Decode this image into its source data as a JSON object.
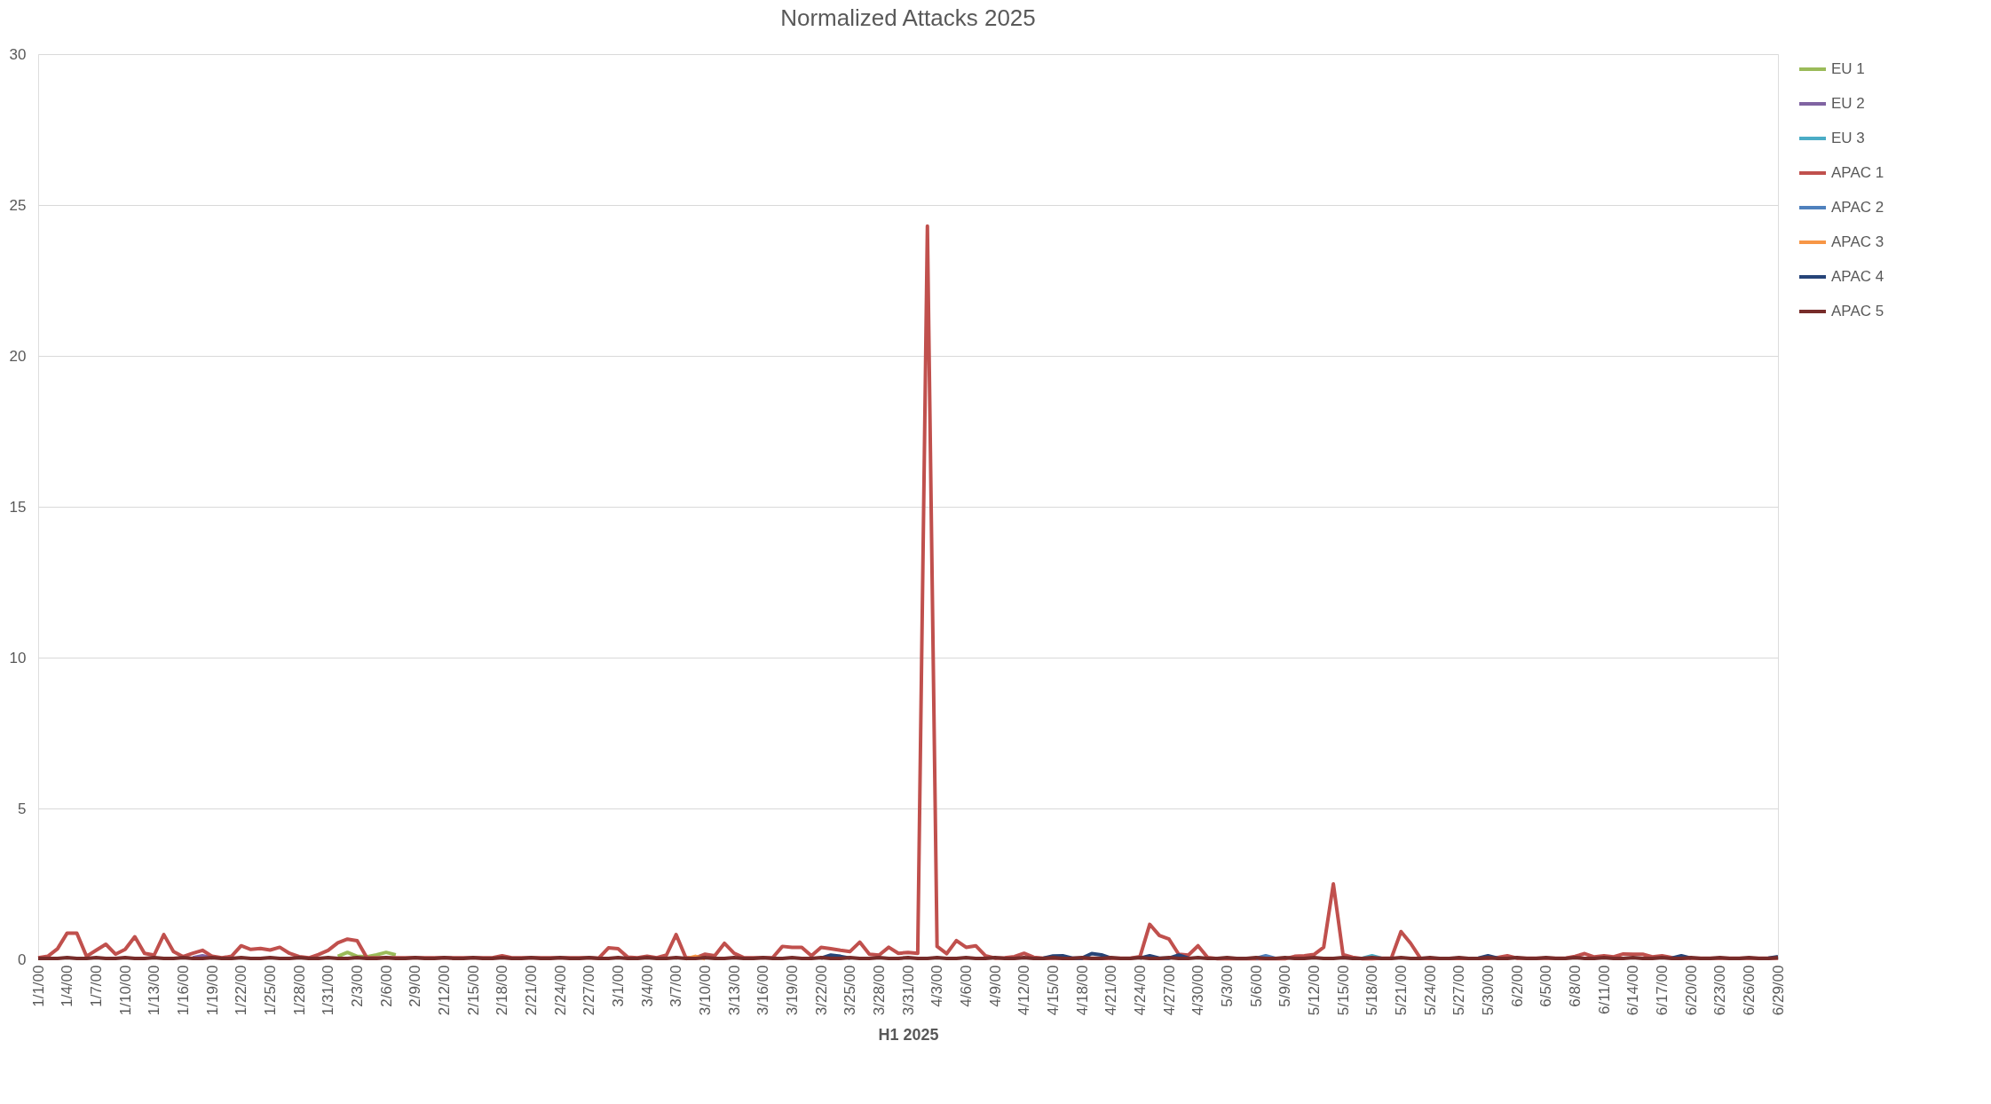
{
  "chart_data": {
    "type": "line",
    "title": "Normalized Attacks 2025",
    "xlabel": "H1 2025",
    "categories": [
      "1/1/00",
      null,
      null,
      "1/4/00",
      null,
      null,
      "1/7/00",
      null,
      null,
      "1/10/00",
      null,
      null,
      "1/13/00",
      null,
      null,
      "1/16/00",
      null,
      null,
      "1/19/00",
      null,
      null,
      "1/22/00",
      null,
      null,
      "1/25/00",
      null,
      null,
      "1/28/00",
      null,
      null,
      "1/31/00",
      null,
      null,
      "2/3/00",
      null,
      null,
      "2/6/00",
      null,
      null,
      "2/9/00",
      null,
      null,
      "2/12/00",
      null,
      null,
      "2/15/00",
      null,
      null,
      "2/18/00",
      null,
      null,
      "2/21/00",
      null,
      null,
      "2/24/00",
      null,
      null,
      "2/27/00",
      null,
      null,
      "3/1/00",
      null,
      null,
      "3/4/00",
      null,
      null,
      "3/7/00",
      null,
      null,
      "3/10/00",
      null,
      null,
      "3/13/00",
      null,
      null,
      "3/16/00",
      null,
      null,
      "3/19/00",
      null,
      null,
      "3/22/00",
      null,
      null,
      "3/25/00",
      null,
      null,
      "3/28/00",
      null,
      null,
      "3/31/00",
      null,
      null,
      "4/3/00",
      null,
      null,
      "4/6/00",
      null,
      null,
      "4/9/00",
      null,
      null,
      "4/12/00",
      null,
      null,
      "4/15/00",
      null,
      null,
      "4/18/00",
      null,
      null,
      "4/21/00",
      null,
      null,
      "4/24/00",
      null,
      null,
      "4/27/00",
      null,
      null,
      "4/30/00",
      null,
      null,
      "5/3/00",
      null,
      null,
      "5/6/00",
      null,
      null,
      "5/9/00",
      null,
      null,
      "5/12/00",
      null,
      null,
      "5/15/00",
      null,
      null,
      "5/18/00",
      null,
      null,
      "5/21/00",
      null,
      null,
      "5/24/00",
      null,
      null,
      "5/27/00",
      null,
      null,
      "5/30/00",
      null,
      null,
      "6/2/00",
      null,
      null,
      "6/5/00",
      null,
      null,
      "6/8/00",
      null,
      null,
      "6/11/00",
      null,
      null,
      "6/14/00",
      null,
      null,
      "6/17/00",
      null,
      null,
      "6/20/00",
      null,
      null,
      "6/23/00",
      null,
      null,
      "6/26/00",
      null,
      null,
      "6/29/00"
    ],
    "ylim": [
      0,
      30
    ],
    "yticks": [
      0,
      5,
      10,
      15,
      20,
      25,
      30
    ],
    "grid": "y",
    "legend": "right",
    "series": [
      {
        "name": "EU 1",
        "color": "#9bbb59",
        "values": [
          null,
          null,
          null,
          null,
          null,
          null,
          null,
          null,
          null,
          null,
          null,
          null,
          null,
          null,
          null,
          null,
          null,
          null,
          null,
          null,
          null,
          null,
          null,
          null,
          null,
          null,
          null,
          null,
          null,
          null,
          null,
          0.1,
          0.23,
          0.1,
          0.08,
          0.15,
          0.23,
          0.15,
          null,
          null,
          null,
          null,
          null,
          null,
          null,
          null,
          null,
          null,
          null,
          null,
          null,
          null,
          null,
          null,
          null,
          null,
          null,
          null,
          null,
          null,
          null,
          null,
          null,
          null,
          null,
          null,
          null,
          null,
          null,
          null,
          null,
          null,
          null,
          null,
          null,
          null,
          null,
          null,
          null,
          null,
          null,
          null,
          null,
          null,
          null,
          null,
          null,
          null,
          null,
          null,
          null,
          null,
          null,
          null,
          null,
          null,
          null,
          null,
          null,
          null,
          null,
          null,
          null,
          null,
          null,
          null,
          null,
          null,
          null,
          null,
          null,
          null,
          null,
          null,
          null,
          null,
          null,
          null,
          null,
          null,
          null,
          null,
          null,
          null,
          null,
          null,
          null,
          null,
          null,
          null,
          null,
          null,
          null,
          null,
          null,
          null,
          null,
          null,
          null,
          null,
          null,
          null,
          null,
          null,
          null,
          null,
          null,
          null,
          null,
          null,
          null,
          null,
          null,
          null,
          null,
          null,
          null,
          null,
          null,
          null,
          null,
          null,
          null,
          null,
          null,
          null,
          null,
          null,
          null,
          null,
          null,
          null,
          null,
          null,
          null,
          null,
          null,
          null,
          null,
          null,
          null
        ]
      },
      {
        "name": "EU 2",
        "color": "#8064a2",
        "values": [
          null,
          null,
          null,
          null,
          null,
          null,
          null,
          null,
          null,
          null,
          null,
          null,
          null,
          null,
          null,
          null,
          0.05,
          0.12,
          0.05,
          null,
          null,
          null,
          null,
          null,
          null,
          null,
          null,
          null,
          null,
          null,
          null,
          null,
          null,
          null,
          null,
          null,
          null,
          null,
          null,
          null,
          null,
          null,
          null,
          null,
          null,
          null,
          null,
          null,
          null,
          null,
          null,
          null,
          null,
          null,
          null,
          null,
          null,
          null,
          null,
          null,
          null,
          null,
          null,
          null,
          null,
          null,
          null,
          null,
          null,
          null,
          null,
          null,
          null,
          null,
          null,
          null,
          null,
          null,
          null,
          null,
          null,
          null,
          null,
          null,
          null,
          null,
          null,
          null,
          null,
          null,
          null,
          null,
          null,
          null,
          null,
          null,
          null,
          null,
          null,
          null,
          null,
          null,
          null,
          null,
          null,
          null,
          null,
          null,
          null,
          null,
          null,
          null,
          null,
          null,
          null,
          null,
          null,
          null,
          null,
          null,
          null,
          null,
          null,
          null,
          null,
          null,
          null,
          null,
          null,
          null,
          null,
          null,
          null,
          null,
          null,
          null,
          null,
          null,
          null,
          null,
          null,
          null,
          null,
          null,
          null,
          null,
          null,
          null,
          null,
          null,
          null,
          null,
          null,
          null,
          null,
          null,
          null,
          null,
          null,
          null,
          null,
          null,
          null,
          null,
          null,
          null,
          null,
          null,
          null,
          null,
          null,
          null,
          null,
          null,
          null,
          null,
          null,
          null,
          null,
          null,
          null
        ]
      },
      {
        "name": "EU 3",
        "color": "#4bacc6",
        "values": [
          null,
          null,
          null,
          null,
          null,
          null,
          null,
          null,
          null,
          null,
          null,
          null,
          null,
          null,
          null,
          null,
          null,
          null,
          null,
          null,
          null,
          null,
          null,
          null,
          null,
          null,
          null,
          null,
          null,
          null,
          null,
          null,
          null,
          null,
          null,
          null,
          null,
          null,
          null,
          null,
          null,
          null,
          null,
          null,
          null,
          null,
          null,
          null,
          null,
          null,
          null,
          null,
          null,
          null,
          null,
          null,
          null,
          null,
          null,
          null,
          null,
          null,
          null,
          null,
          null,
          null,
          null,
          null,
          null,
          null,
          null,
          null,
          null,
          null,
          null,
          null,
          null,
          null,
          null,
          null,
          null,
          null,
          null,
          null,
          null,
          null,
          null,
          null,
          null,
          null,
          null,
          null,
          null,
          null,
          null,
          null,
          null,
          null,
          null,
          null,
          null,
          null,
          null,
          null,
          null,
          null,
          null,
          null,
          null,
          null,
          null,
          null,
          null,
          null,
          null,
          null,
          null,
          null,
          null,
          null,
          null,
          null,
          null,
          null,
          null,
          null,
          null,
          null,
          null,
          null,
          null,
          null,
          null,
          null,
          null,
          null,
          null,
          0.03,
          0.12,
          0.03,
          null,
          null,
          null,
          null,
          null,
          null,
          null,
          null,
          null,
          null,
          null,
          null,
          null,
          null,
          null,
          null,
          null,
          null,
          null,
          null,
          null,
          null,
          null,
          null,
          null,
          null,
          null,
          null,
          null,
          null,
          null,
          null,
          null,
          null,
          null,
          null,
          null,
          null,
          null,
          null,
          null
        ]
      },
      {
        "name": "APAC 1",
        "color": "#c0504d",
        "values": [
          0.05,
          0.1,
          0.35,
          0.87,
          0.87,
          0.1,
          0.3,
          0.5,
          0.17,
          0.33,
          0.75,
          0.2,
          0.14,
          0.82,
          0.26,
          0.09,
          0.2,
          0.3,
          0.1,
          0.05,
          0.1,
          0.45,
          0.33,
          0.36,
          0.31,
          0.4,
          0.2,
          0.09,
          0.05,
          0.16,
          0.3,
          0.55,
          0.67,
          0.62,
          0.06,
          0.05,
          0.05,
          0.05,
          0.05,
          0.05,
          0.05,
          0.05,
          0.05,
          0.05,
          0.05,
          0.05,
          0.05,
          0.05,
          0.12,
          0.05,
          0.05,
          0.05,
          0.05,
          0.05,
          0.05,
          0.05,
          0.05,
          0.05,
          0.04,
          0.38,
          0.35,
          0.07,
          0.05,
          0.1,
          0.05,
          0.14,
          0.82,
          0.06,
          0.05,
          0.17,
          0.12,
          0.53,
          0.2,
          0.06,
          0.05,
          0.05,
          0.06,
          0.43,
          0.4,
          0.4,
          0.12,
          0.4,
          0.35,
          0.3,
          0.26,
          0.57,
          0.17,
          0.14,
          0.4,
          0.2,
          0.23,
          0.2,
          24.3,
          0.43,
          0.19,
          0.62,
          0.4,
          0.45,
          0.12,
          0.04,
          0.05,
          0.09,
          0.2,
          0.07,
          0.04,
          0.04,
          0.04,
          0.04,
          0.04,
          0.04,
          0.04,
          0.04,
          0.04,
          0.04,
          0.09,
          1.16,
          0.79,
          0.67,
          0.17,
          0.14,
          0.45,
          0.06,
          0.02,
          0.02,
          0.02,
          0.02,
          0.02,
          0.02,
          0.02,
          0.02,
          0.1,
          0.12,
          0.16,
          0.4,
          2.5,
          0.16,
          0.07,
          0.02,
          0.02,
          0.04,
          0.04,
          0.92,
          0.53,
          0.04,
          0.03,
          0.03,
          0.03,
          0.03,
          0.03,
          0.03,
          0.03,
          0.06,
          0.12,
          0.04,
          0.04,
          0.04,
          0.04,
          0.04,
          0.04,
          0.1,
          0.19,
          0.08,
          0.12,
          0.08,
          0.18,
          0.17,
          0.17,
          0.08,
          0.12,
          0.06,
          0.04,
          0.04,
          0.04,
          0.04,
          0.04,
          0.04,
          0.04,
          0.04,
          0.04,
          0.04,
          0.04
        ]
      },
      {
        "name": "APAC 2",
        "color": "#4f81bd",
        "values": [
          null,
          null,
          null,
          null,
          null,
          null,
          null,
          null,
          null,
          null,
          null,
          null,
          null,
          null,
          null,
          null,
          null,
          null,
          null,
          null,
          null,
          null,
          null,
          null,
          null,
          null,
          null,
          null,
          null,
          null,
          null,
          null,
          null,
          null,
          null,
          null,
          null,
          null,
          null,
          null,
          null,
          null,
          null,
          null,
          null,
          null,
          null,
          null,
          null,
          null,
          null,
          null,
          null,
          null,
          null,
          null,
          null,
          null,
          null,
          null,
          null,
          null,
          null,
          null,
          null,
          null,
          null,
          null,
          null,
          null,
          null,
          null,
          null,
          null,
          null,
          null,
          null,
          null,
          null,
          null,
          null,
          null,
          null,
          null,
          null,
          null,
          null,
          null,
          null,
          null,
          null,
          null,
          null,
          null,
          null,
          null,
          null,
          null,
          null,
          null,
          null,
          null,
          null,
          null,
          null,
          null,
          null,
          null,
          null,
          null,
          null,
          null,
          null,
          null,
          null,
          null,
          null,
          null,
          null,
          null,
          null,
          null,
          null,
          null,
          null,
          null,
          0.03,
          0.12,
          0.03,
          null,
          null,
          null,
          null,
          null,
          null,
          null,
          null,
          null,
          null,
          null,
          null,
          null,
          null,
          null,
          null,
          null,
          null,
          null,
          null,
          null,
          null,
          null,
          null,
          null,
          null,
          null,
          null,
          null,
          null,
          null,
          null,
          null,
          null,
          null,
          null,
          null,
          null,
          null,
          null,
          null,
          null,
          null,
          null,
          null,
          null,
          null,
          null,
          null,
          null,
          null,
          null
        ]
      },
      {
        "name": "APAC 3",
        "color": "#f79646",
        "values": [
          null,
          null,
          null,
          null,
          null,
          null,
          null,
          null,
          null,
          null,
          null,
          null,
          null,
          null,
          null,
          null,
          null,
          null,
          null,
          null,
          null,
          null,
          null,
          null,
          null,
          null,
          null,
          null,
          null,
          null,
          null,
          null,
          null,
          null,
          null,
          null,
          null,
          null,
          null,
          null,
          null,
          null,
          null,
          null,
          null,
          null,
          null,
          null,
          null,
          null,
          null,
          null,
          null,
          null,
          null,
          null,
          null,
          null,
          null,
          null,
          null,
          null,
          null,
          null,
          null,
          null,
          null,
          0.02,
          0.1,
          0.02,
          null,
          null,
          null,
          null,
          null,
          null,
          null,
          null,
          null,
          null,
          null,
          null,
          null,
          null,
          null,
          null,
          null,
          null,
          null,
          null,
          null,
          null,
          null,
          null,
          null,
          null,
          null,
          null,
          null,
          null,
          null,
          null,
          null,
          null,
          null,
          null,
          null,
          null,
          null,
          null,
          null,
          null,
          null,
          null,
          null,
          null,
          null,
          null,
          null,
          null,
          null,
          null,
          null,
          null,
          null,
          null,
          null,
          null,
          null,
          null,
          null,
          null,
          null,
          null,
          null,
          null,
          null,
          null,
          null,
          null,
          null,
          null,
          null,
          null,
          null,
          null,
          null,
          null,
          null,
          null,
          null,
          null,
          null,
          null,
          null,
          null,
          null,
          null,
          null,
          null,
          null,
          null,
          null,
          null,
          null,
          null,
          null,
          null,
          null,
          null,
          null,
          null,
          null,
          null,
          null,
          null,
          null,
          null,
          null,
          null,
          null
        ]
      },
      {
        "name": "APAC 4",
        "color": "#264478",
        "values": [
          null,
          null,
          null,
          null,
          null,
          null,
          null,
          null,
          null,
          null,
          null,
          null,
          null,
          null,
          null,
          null,
          null,
          null,
          null,
          null,
          null,
          null,
          null,
          null,
          null,
          null,
          null,
          null,
          null,
          null,
          null,
          null,
          null,
          null,
          null,
          null,
          null,
          null,
          null,
          null,
          null,
          null,
          null,
          null,
          null,
          null,
          null,
          null,
          null,
          null,
          null,
          null,
          null,
          null,
          null,
          null,
          null,
          null,
          null,
          null,
          null,
          null,
          null,
          null,
          null,
          null,
          null,
          null,
          null,
          null,
          null,
          null,
          null,
          null,
          null,
          null,
          null,
          null,
          null,
          null,
          null,
          0.04,
          0.14,
          0.1,
          0.04,
          null,
          null,
          null,
          null,
          null,
          null,
          null,
          null,
          null,
          null,
          null,
          null,
          null,
          null,
          null,
          null,
          null,
          null,
          null,
          0.04,
          0.11,
          0.12,
          0.04,
          0.04,
          0.19,
          0.15,
          0.04,
          null,
          null,
          0.04,
          0.12,
          0.04,
          0.04,
          0.14,
          0.04,
          null,
          null,
          null,
          null,
          null,
          null,
          null,
          null,
          null,
          null,
          null,
          null,
          null,
          null,
          null,
          null,
          null,
          null,
          null,
          null,
          null,
          null,
          null,
          null,
          null,
          null,
          null,
          null,
          null,
          0.04,
          0.12,
          0.04,
          null,
          null,
          null,
          null,
          null,
          null,
          null,
          null,
          null,
          null,
          null,
          null,
          null,
          null,
          null,
          null,
          null,
          0.04,
          0.12,
          0.04,
          null,
          null,
          null,
          null,
          null,
          null,
          null,
          0.04,
          0.09
        ]
      },
      {
        "name": "APAC 5",
        "color": "#772c2a",
        "values": [
          0.03,
          0.03,
          0.03,
          0.06,
          0.03,
          0.03,
          0.06,
          0.03,
          0.03,
          0.06,
          0.03,
          0.03,
          0.06,
          0.03,
          0.03,
          0.06,
          0.03,
          0.03,
          0.06,
          0.03,
          0.03,
          0.06,
          0.03,
          0.03,
          0.06,
          0.03,
          0.03,
          0.06,
          0.03,
          0.03,
          0.06,
          0.03,
          0.03,
          0.06,
          0.03,
          0.03,
          0.06,
          0.03,
          0.03,
          0.06,
          0.03,
          0.03,
          0.06,
          0.03,
          0.03,
          0.06,
          0.03,
          0.03,
          0.06,
          0.03,
          0.03,
          0.06,
          0.03,
          0.03,
          0.06,
          0.03,
          0.03,
          0.06,
          0.03,
          0.03,
          0.06,
          0.03,
          0.03,
          0.06,
          0.03,
          0.03,
          0.06,
          0.03,
          0.03,
          0.06,
          0.03,
          0.03,
          0.06,
          0.03,
          0.03,
          0.06,
          0.03,
          0.03,
          0.06,
          0.03,
          0.03,
          0.06,
          0.03,
          0.03,
          0.06,
          0.03,
          0.03,
          0.06,
          0.03,
          0.03,
          0.06,
          0.03,
          0.03,
          0.06,
          0.03,
          0.03,
          0.06,
          0.03,
          0.03,
          0.06,
          0.03,
          0.03,
          0.06,
          0.03,
          0.03,
          0.06,
          0.03,
          0.03,
          0.06,
          0.03,
          0.03,
          0.06,
          0.03,
          0.03,
          0.06,
          0.03,
          0.03,
          0.06,
          0.03,
          0.03,
          0.06,
          0.03,
          0.03,
          0.06,
          0.03,
          0.03,
          0.06,
          0.03,
          0.03,
          0.06,
          0.03,
          0.03,
          0.06,
          0.03,
          0.03,
          0.06,
          0.03,
          0.03,
          0.06,
          0.03,
          0.03,
          0.06,
          0.03,
          0.03,
          0.06,
          0.03,
          0.03,
          0.06,
          0.03,
          0.03,
          0.06,
          0.03,
          0.03,
          0.06,
          0.03,
          0.03,
          0.06,
          0.03,
          0.03,
          0.06,
          0.03,
          0.03,
          0.06,
          0.03,
          0.03,
          0.06,
          0.03,
          0.03,
          0.06,
          0.03,
          0.03,
          0.06,
          0.03,
          0.03,
          0.06,
          0.03,
          0.03,
          0.06,
          0.03,
          0.03,
          0.06
        ]
      }
    ]
  }
}
